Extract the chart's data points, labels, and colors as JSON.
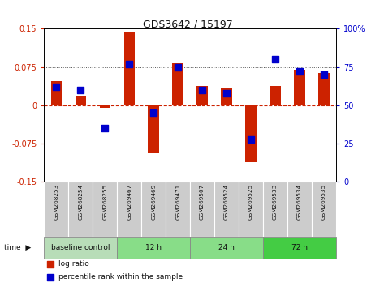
{
  "title": "GDS3642 / 15197",
  "samples": [
    "GSM268253",
    "GSM268254",
    "GSM268255",
    "GSM269467",
    "GSM269469",
    "GSM269471",
    "GSM269507",
    "GSM269524",
    "GSM269525",
    "GSM269533",
    "GSM269534",
    "GSM269535"
  ],
  "log_ratio": [
    0.048,
    0.018,
    -0.005,
    0.143,
    -0.093,
    0.082,
    0.038,
    0.033,
    -0.112,
    0.038,
    0.07,
    0.063
  ],
  "percentile_rank": [
    62,
    60,
    35,
    77,
    45,
    75,
    60,
    58,
    28,
    80,
    72,
    70
  ],
  "groups": [
    {
      "label": "baseline control",
      "start": 0,
      "end": 3
    },
    {
      "label": "12 h",
      "start": 3,
      "end": 6
    },
    {
      "label": "24 h",
      "start": 6,
      "end": 9
    },
    {
      "label": "72 h",
      "start": 9,
      "end": 12
    }
  ],
  "group_colors": [
    "#b8ddb8",
    "#88dd88",
    "#88dd88",
    "#44cc44"
  ],
  "ylim_left": [
    -0.15,
    0.15
  ],
  "ylim_right": [
    0,
    100
  ],
  "yticks_left": [
    -0.15,
    -0.075,
    0,
    0.075,
    0.15
  ],
  "yticks_right": [
    0,
    25,
    50,
    75,
    100
  ],
  "ytick_labels_left": [
    "-0.15",
    "-0.075",
    "0",
    "0.075",
    "0.15"
  ],
  "ytick_labels_right": [
    "0",
    "25",
    "50",
    "75",
    "100%"
  ],
  "bar_color": "#cc2200",
  "dot_color": "#0000cc",
  "bar_width": 0.45,
  "dot_size": 28,
  "legend_bar_label": "log ratio",
  "legend_dot_label": "percentile rank within the sample",
  "time_label": "time",
  "bg_color": "#ffffff",
  "label_color_left": "#cc2200",
  "label_color_right": "#0000cc",
  "cell_bg": "#cccccc",
  "cell_edge": "#ffffff"
}
